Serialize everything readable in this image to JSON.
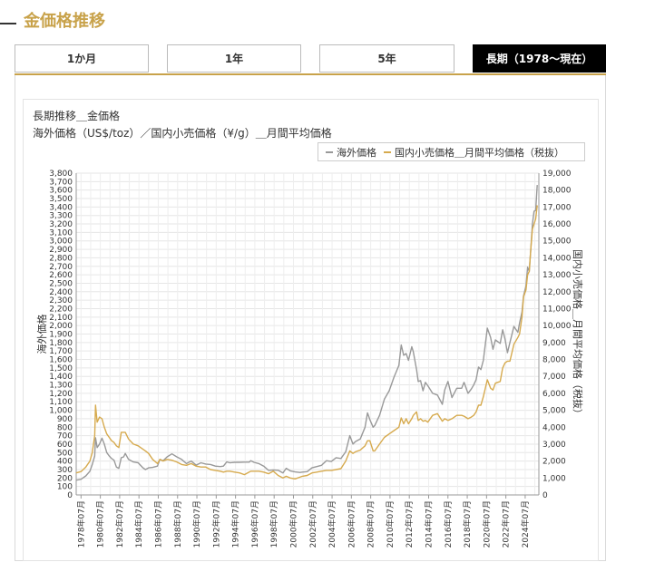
{
  "page": {
    "title": "金価格推移"
  },
  "tabs": [
    {
      "label": "1か月",
      "active": false
    },
    {
      "label": "1年",
      "active": false
    },
    {
      "label": "5年",
      "active": false
    },
    {
      "label": "長期（1978～現在）",
      "active": true
    }
  ],
  "chart_data": {
    "type": "line",
    "title": "長期推移＿金価格",
    "subtitle": "海外価格（US$/toz）／国内小売価格（¥/g）＿月間平均価格",
    "ylabel": "海外価格",
    "y2label": "国内小売価格＿月間平均価格（税抜）",
    "ylim": [
      0,
      3800
    ],
    "y2lim": [
      0,
      19000
    ],
    "yticks": [
      0,
      100,
      200,
      300,
      400,
      500,
      600,
      700,
      800,
      900,
      1000,
      1100,
      1200,
      1300,
      1400,
      1500,
      1600,
      1700,
      1800,
      1900,
      2000,
      2100,
      2200,
      2300,
      2400,
      2500,
      2600,
      2700,
      2800,
      2900,
      3000,
      3100,
      3200,
      3300,
      3400,
      3500,
      3600,
      3700,
      3800
    ],
    "y2ticks": [
      0,
      1000,
      2000,
      3000,
      4000,
      5000,
      6000,
      7000,
      8000,
      9000,
      10000,
      11000,
      12000,
      13000,
      14000,
      15000,
      16000,
      17000,
      18000,
      19000
    ],
    "xlim": [
      "1978-01",
      "2025-12"
    ],
    "xticks": [
      "1978年07月",
      "1980年07月",
      "1982年07月",
      "1984年07月",
      "1986年07月",
      "1988年07月",
      "1990年07月",
      "1992年07月",
      "1994年07月",
      "1996年07月",
      "1998年07月",
      "2000年07月",
      "2002年07月",
      "2004年07月",
      "2006年07月",
      "2008年07月",
      "2010年07月",
      "2012年07月",
      "2014年07月",
      "2016年07月",
      "2018年07月",
      "2020年07月",
      "2022年07月",
      "2024年07月"
    ],
    "legend_position": "top-right",
    "grid": true,
    "series": [
      {
        "name": "海外価格",
        "axis": "left",
        "color": "#999999",
        "points": [
          [
            "1978-01",
            175
          ],
          [
            "1978-07",
            185
          ],
          [
            "1979-01",
            225
          ],
          [
            "1979-06",
            280
          ],
          [
            "1979-09",
            360
          ],
          [
            "1979-12",
            460
          ],
          [
            "1980-01",
            675
          ],
          [
            "1980-03",
            560
          ],
          [
            "1980-06",
            600
          ],
          [
            "1980-09",
            670
          ],
          [
            "1980-12",
            600
          ],
          [
            "1981-03",
            500
          ],
          [
            "1981-06",
            460
          ],
          [
            "1981-09",
            430
          ],
          [
            "1981-12",
            410
          ],
          [
            "1982-03",
            330
          ],
          [
            "1982-06",
            315
          ],
          [
            "1982-09",
            440
          ],
          [
            "1982-12",
            450
          ],
          [
            "1983-02",
            490
          ],
          [
            "1983-06",
            420
          ],
          [
            "1983-12",
            390
          ],
          [
            "1984-06",
            380
          ],
          [
            "1984-12",
            320
          ],
          [
            "1985-03",
            300
          ],
          [
            "1985-07",
            320
          ],
          [
            "1985-12",
            325
          ],
          [
            "1986-06",
            340
          ],
          [
            "1986-09",
            420
          ],
          [
            "1987-01",
            405
          ],
          [
            "1987-06",
            450
          ],
          [
            "1987-12",
            485
          ],
          [
            "1988-06",
            450
          ],
          [
            "1988-12",
            420
          ],
          [
            "1989-06",
            370
          ],
          [
            "1989-12",
            400
          ],
          [
            "1990-06",
            352
          ],
          [
            "1990-12",
            380
          ],
          [
            "1991-06",
            365
          ],
          [
            "1991-12",
            360
          ],
          [
            "1992-06",
            340
          ],
          [
            "1992-12",
            335
          ],
          [
            "1993-04",
            340
          ],
          [
            "1993-08",
            390
          ],
          [
            "1993-12",
            380
          ],
          [
            "1994-06",
            385
          ],
          [
            "1994-12",
            385
          ],
          [
            "1995-06",
            387
          ],
          [
            "1995-12",
            387
          ],
          [
            "1996-02",
            405
          ],
          [
            "1996-06",
            385
          ],
          [
            "1996-12",
            370
          ],
          [
            "1997-06",
            340
          ],
          [
            "1997-12",
            290
          ],
          [
            "1998-06",
            295
          ],
          [
            "1998-12",
            291
          ],
          [
            "1999-06",
            260
          ],
          [
            "1999-10",
            315
          ],
          [
            "2000-03",
            285
          ],
          [
            "2000-09",
            272
          ],
          [
            "2001-03",
            265
          ],
          [
            "2001-06",
            270
          ],
          [
            "2001-12",
            275
          ],
          [
            "2002-06",
            320
          ],
          [
            "2002-12",
            335
          ],
          [
            "2003-06",
            350
          ],
          [
            "2003-12",
            405
          ],
          [
            "2004-06",
            395
          ],
          [
            "2004-12",
            440
          ],
          [
            "2005-06",
            430
          ],
          [
            "2005-12",
            510
          ],
          [
            "2006-05",
            700
          ],
          [
            "2006-09",
            600
          ],
          [
            "2006-12",
            630
          ],
          [
            "2007-06",
            660
          ],
          [
            "2007-12",
            800
          ],
          [
            "2008-03",
            970
          ],
          [
            "2008-06",
            890
          ],
          [
            "2008-10",
            800
          ],
          [
            "2008-12",
            820
          ],
          [
            "2009-06",
            940
          ],
          [
            "2009-12",
            1130
          ],
          [
            "2010-06",
            1230
          ],
          [
            "2010-12",
            1390
          ],
          [
            "2011-06",
            1530
          ],
          [
            "2011-09",
            1770
          ],
          [
            "2011-12",
            1650
          ],
          [
            "2012-03",
            1670
          ],
          [
            "2012-06",
            1590
          ],
          [
            "2012-10",
            1750
          ],
          [
            "2012-12",
            1690
          ],
          [
            "2013-04",
            1480
          ],
          [
            "2013-06",
            1340
          ],
          [
            "2013-09",
            1350
          ],
          [
            "2013-12",
            1230
          ],
          [
            "2014-03",
            1330
          ],
          [
            "2014-06",
            1290
          ],
          [
            "2014-12",
            1200
          ],
          [
            "2015-06",
            1180
          ],
          [
            "2015-12",
            1070
          ],
          [
            "2016-03",
            1240
          ],
          [
            "2016-07",
            1340
          ],
          [
            "2016-12",
            1150
          ],
          [
            "2017-06",
            1260
          ],
          [
            "2017-12",
            1260
          ],
          [
            "2018-03",
            1330
          ],
          [
            "2018-08",
            1200
          ],
          [
            "2018-12",
            1250
          ],
          [
            "2019-03",
            1300
          ],
          [
            "2019-06",
            1360
          ],
          [
            "2019-09",
            1510
          ],
          [
            "2019-12",
            1480
          ],
          [
            "2020-03",
            1590
          ],
          [
            "2020-08",
            1970
          ],
          [
            "2020-12",
            1860
          ],
          [
            "2021-03",
            1720
          ],
          [
            "2021-06",
            1830
          ],
          [
            "2021-12",
            1790
          ],
          [
            "2022-03",
            1950
          ],
          [
            "2022-06",
            1840
          ],
          [
            "2022-09",
            1680
          ],
          [
            "2022-12",
            1800
          ],
          [
            "2023-05",
            1990
          ],
          [
            "2023-10",
            1920
          ],
          [
            "2023-12",
            2030
          ],
          [
            "2024-03",
            2160
          ],
          [
            "2024-05",
            2350
          ],
          [
            "2024-08",
            2470
          ],
          [
            "2024-10",
            2690
          ],
          [
            "2024-12",
            2640
          ],
          [
            "2025-02",
            2900
          ],
          [
            "2025-04",
            3200
          ],
          [
            "2025-06",
            3350
          ],
          [
            "2025-08",
            3360
          ],
          [
            "2025-10",
            3660
          ]
        ]
      },
      {
        "name": "国内小売価格＿月間平均価格（税抜）",
        "axis": "right",
        "color": "#d6aa4e",
        "points": [
          [
            "1978-01",
            1300
          ],
          [
            "1978-07",
            1380
          ],
          [
            "1979-01",
            1650
          ],
          [
            "1979-06",
            2000
          ],
          [
            "1979-09",
            2500
          ],
          [
            "1979-12",
            3500
          ],
          [
            "1980-01",
            5300
          ],
          [
            "1980-03",
            4300
          ],
          [
            "1980-06",
            4600
          ],
          [
            "1980-09",
            4500
          ],
          [
            "1980-12",
            4000
          ],
          [
            "1981-03",
            3600
          ],
          [
            "1981-06",
            3400
          ],
          [
            "1981-09",
            3200
          ],
          [
            "1981-12",
            3100
          ],
          [
            "1982-03",
            2900
          ],
          [
            "1982-06",
            2800
          ],
          [
            "1982-09",
            3700
          ],
          [
            "1982-12",
            3700
          ],
          [
            "1983-02",
            3700
          ],
          [
            "1983-06",
            3300
          ],
          [
            "1983-12",
            3000
          ],
          [
            "1984-06",
            2900
          ],
          [
            "1984-12",
            2700
          ],
          [
            "1985-03",
            2600
          ],
          [
            "1985-07",
            2450
          ],
          [
            "1985-12",
            2100
          ],
          [
            "1986-06",
            1850
          ],
          [
            "1986-09",
            2100
          ],
          [
            "1987-01",
            2000
          ],
          [
            "1987-06",
            2100
          ],
          [
            "1987-12",
            2050
          ],
          [
            "1988-06",
            1950
          ],
          [
            "1988-12",
            1800
          ],
          [
            "1989-06",
            1750
          ],
          [
            "1989-12",
            1850
          ],
          [
            "1990-06",
            1700
          ],
          [
            "1990-12",
            1650
          ],
          [
            "1991-06",
            1650
          ],
          [
            "1991-12",
            1500
          ],
          [
            "1992-06",
            1450
          ],
          [
            "1992-12",
            1400
          ],
          [
            "1993-04",
            1350
          ],
          [
            "1993-08",
            1400
          ],
          [
            "1993-12",
            1400
          ],
          [
            "1994-06",
            1350
          ],
          [
            "1994-12",
            1300
          ],
          [
            "1995-06",
            1200
          ],
          [
            "1995-12",
            1350
          ],
          [
            "1996-02",
            1400
          ],
          [
            "1996-06",
            1400
          ],
          [
            "1996-12",
            1400
          ],
          [
            "1997-06",
            1350
          ],
          [
            "1997-12",
            1250
          ],
          [
            "1998-06",
            1400
          ],
          [
            "1998-12",
            1150
          ],
          [
            "1999-06",
            1000
          ],
          [
            "1999-10",
            1100
          ],
          [
            "2000-03",
            1000
          ],
          [
            "2000-09",
            950
          ],
          [
            "2001-03",
            1050
          ],
          [
            "2001-06",
            1100
          ],
          [
            "2001-12",
            1150
          ],
          [
            "2002-06",
            1300
          ],
          [
            "2002-12",
            1350
          ],
          [
            "2003-06",
            1400
          ],
          [
            "2003-12",
            1450
          ],
          [
            "2004-06",
            1450
          ],
          [
            "2004-12",
            1500
          ],
          [
            "2005-06",
            1550
          ],
          [
            "2005-12",
            2000
          ],
          [
            "2006-05",
            2600
          ],
          [
            "2006-09",
            2450
          ],
          [
            "2006-12",
            2550
          ],
          [
            "2007-06",
            2650
          ],
          [
            "2007-12",
            2900
          ],
          [
            "2008-03",
            3200
          ],
          [
            "2008-06",
            3200
          ],
          [
            "2008-10",
            2600
          ],
          [
            "2008-12",
            2600
          ],
          [
            "2009-06",
            3000
          ],
          [
            "2009-12",
            3400
          ],
          [
            "2010-06",
            3600
          ],
          [
            "2010-12",
            3800
          ],
          [
            "2011-06",
            4000
          ],
          [
            "2011-09",
            4550
          ],
          [
            "2011-12",
            4200
          ],
          [
            "2012-03",
            4500
          ],
          [
            "2012-06",
            4200
          ],
          [
            "2012-10",
            4500
          ],
          [
            "2012-12",
            4700
          ],
          [
            "2013-04",
            4900
          ],
          [
            "2013-06",
            4400
          ],
          [
            "2013-09",
            4500
          ],
          [
            "2013-12",
            4350
          ],
          [
            "2014-03",
            4400
          ],
          [
            "2014-06",
            4300
          ],
          [
            "2014-12",
            4700
          ],
          [
            "2015-06",
            4800
          ],
          [
            "2015-12",
            4350
          ],
          [
            "2016-03",
            4500
          ],
          [
            "2016-07",
            4400
          ],
          [
            "2016-12",
            4500
          ],
          [
            "2017-06",
            4700
          ],
          [
            "2017-12",
            4700
          ],
          [
            "2018-03",
            4650
          ],
          [
            "2018-08",
            4500
          ],
          [
            "2018-12",
            4600
          ],
          [
            "2019-03",
            4700
          ],
          [
            "2019-06",
            4900
          ],
          [
            "2019-09",
            5300
          ],
          [
            "2019-12",
            5300
          ],
          [
            "2020-03",
            5800
          ],
          [
            "2020-08",
            6800
          ],
          [
            "2020-12",
            6300
          ],
          [
            "2021-03",
            6200
          ],
          [
            "2021-06",
            6600
          ],
          [
            "2021-12",
            6700
          ],
          [
            "2022-03",
            7500
          ],
          [
            "2022-06",
            7800
          ],
          [
            "2022-09",
            7900
          ],
          [
            "2022-12",
            7900
          ],
          [
            "2023-05",
            8900
          ],
          [
            "2023-10",
            9300
          ],
          [
            "2023-12",
            9500
          ],
          [
            "2024-03",
            10500
          ],
          [
            "2024-05",
            11700
          ],
          [
            "2024-08",
            12100
          ],
          [
            "2024-10",
            13000
          ],
          [
            "2024-12",
            13200
          ],
          [
            "2025-02",
            14500
          ],
          [
            "2025-04",
            15700
          ],
          [
            "2025-06",
            16000
          ],
          [
            "2025-08",
            16300
          ],
          [
            "2025-10",
            17100
          ]
        ]
      }
    ]
  }
}
